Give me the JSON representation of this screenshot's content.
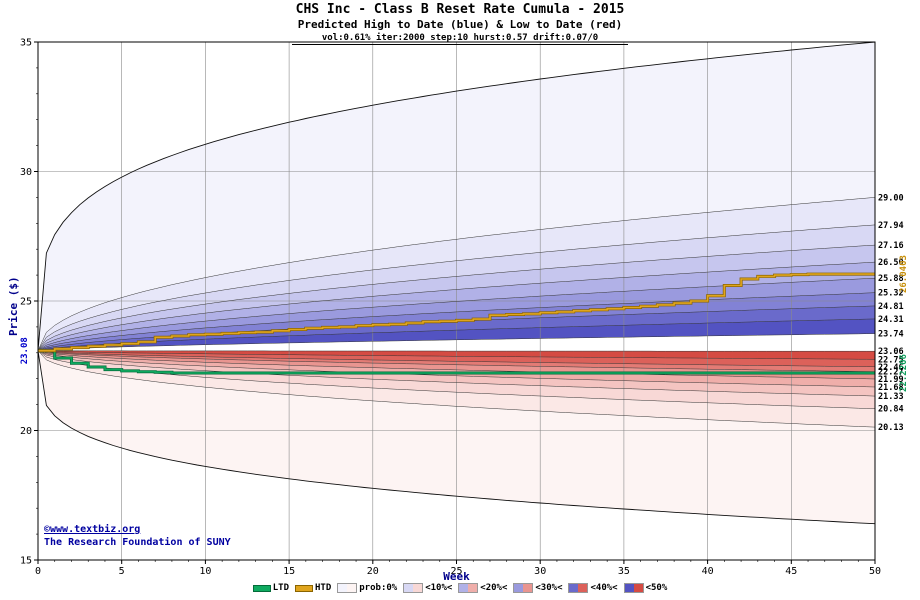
{
  "header": {
    "title": "CHS Inc - Class B Reset Rate Cumula - 2015",
    "subtitle": "Predicted High to Date (blue) &  Low to Date (red)",
    "params": "vol:0.61% iter:2000 step:10 hurst:0.57 drift:0.07/0"
  },
  "footer": {
    "copyright": "©www.textbiz.org",
    "org": "The Research Foundation of SUNY"
  },
  "legend": {
    "series": [
      {
        "label": "LTD",
        "color": "#0faa60",
        "outline": "#046b3a"
      },
      {
        "label": "HTD",
        "color": "#e0a51d",
        "outline": "#8a6400"
      }
    ],
    "prob": [
      {
        "label": "prob:0%",
        "blue": "#f3f3fc",
        "red": "#fdf4f3"
      },
      {
        "label": "<10%<",
        "blue": "#d8d8f4",
        "red": "#f8d8d6"
      },
      {
        "label": "<20%<",
        "blue": "#b1b1e7",
        "red": "#efaeaa"
      },
      {
        "label": "<30%<",
        "blue": "#9a9ade",
        "red": "#e99590"
      },
      {
        "label": "<40%<",
        "blue": "#6a6acb",
        "red": "#dc615a"
      },
      {
        "label": "<50%",
        "blue": "#5353c2",
        "red": "#d54b43"
      }
    ]
  },
  "chart_data": {
    "type": "area",
    "title": "CHS Inc - Class B Reset Rate Cumula - 2015",
    "xlabel": "Week",
    "ylabel": "Price ($)",
    "xlim": [
      0,
      50
    ],
    "ylim": [
      15,
      35
    ],
    "xticks": [
      0,
      5,
      10,
      15,
      20,
      25,
      30,
      35,
      40,
      45,
      50
    ],
    "yticks": [
      15,
      20,
      25,
      30,
      35
    ],
    "grid": true,
    "legend_position": "bottom",
    "start": {
      "week": 0,
      "price": 23.08,
      "label": "23.08"
    },
    "envelope": {
      "high_end": 35.0,
      "low_end": 16.4,
      "exponent": 0.25
    },
    "curve_exponents": {
      "base": 0.46,
      "step": 0.024
    },
    "high_boundaries": {
      "ends": [
        29.0,
        27.94,
        27.16,
        26.5,
        25.88,
        25.32,
        24.81,
        24.31,
        23.74
      ],
      "labels": [
        "29.00",
        "27.94",
        "27.16",
        "26.50",
        "25.88",
        "25.32",
        "24.81",
        "24.31",
        "23.74"
      ]
    },
    "low_boundaries": {
      "ends": [
        20.13,
        20.84,
        21.33,
        21.68,
        21.99,
        22.27,
        22.46,
        22.75,
        23.06
      ],
      "labels": [
        "20.13",
        "20.84",
        "21.33",
        "21.68",
        "21.99",
        "22.27",
        "22.46",
        "22.75",
        "23.06"
      ]
    },
    "band_colors": {
      "blue": [
        "#f3f3fc",
        "#e7e7f9",
        "#d8d8f4",
        "#c6c6ee",
        "#b1b1e7",
        "#9a9ade",
        "#8282d5",
        "#6a6acb",
        "#5353c2"
      ],
      "red": [
        "#fdf4f3",
        "#fbe8e6",
        "#f8d8d6",
        "#f4c4c1",
        "#efaeaa",
        "#e99590",
        "#e37b75",
        "#dc615a",
        "#d54b43"
      ]
    },
    "htd": {
      "name": "HTD",
      "color": "#c8900a",
      "line_color": "#e0a51d",
      "outline": "#8a6400",
      "final_label": "26.0403",
      "values": [
        23.08,
        23.15,
        23.2,
        23.25,
        23.3,
        23.35,
        23.42,
        23.6,
        23.65,
        23.7,
        23.72,
        23.75,
        23.78,
        23.8,
        23.85,
        23.9,
        23.95,
        23.98,
        24.0,
        24.05,
        24.08,
        24.1,
        24.15,
        24.2,
        24.22,
        24.25,
        24.3,
        24.45,
        24.48,
        24.5,
        24.55,
        24.58,
        24.62,
        24.66,
        24.7,
        24.75,
        24.8,
        24.85,
        24.92,
        25.0,
        25.2,
        25.6,
        25.85,
        25.95,
        26.0,
        26.02,
        26.04,
        26.0403,
        26.0403,
        26.0403,
        26.0403
      ]
    },
    "ltd": {
      "name": "LTD",
      "color": "#0f9e5c",
      "line_color": "#0faa60",
      "outline": "#046b3a",
      "final_label": "22.2206",
      "values": [
        23.08,
        22.8,
        22.6,
        22.45,
        22.35,
        22.3,
        22.27,
        22.25,
        22.2206,
        22.2206,
        22.2206,
        22.2206,
        22.2206,
        22.2206,
        22.2206,
        22.2206,
        22.2206,
        22.2206,
        22.2206,
        22.2206,
        22.2206,
        22.2206,
        22.2206,
        22.2206,
        22.2206,
        22.2206,
        22.2206,
        22.2206,
        22.2206,
        22.2206,
        22.2206,
        22.2206,
        22.2206,
        22.2206,
        22.2206,
        22.2206,
        22.2206,
        22.2206,
        22.2206,
        22.2206,
        22.2206,
        22.2206,
        22.2206,
        22.2206,
        22.2206,
        22.2206,
        22.2206,
        22.2206,
        22.2206,
        22.2206,
        22.2206
      ]
    }
  }
}
